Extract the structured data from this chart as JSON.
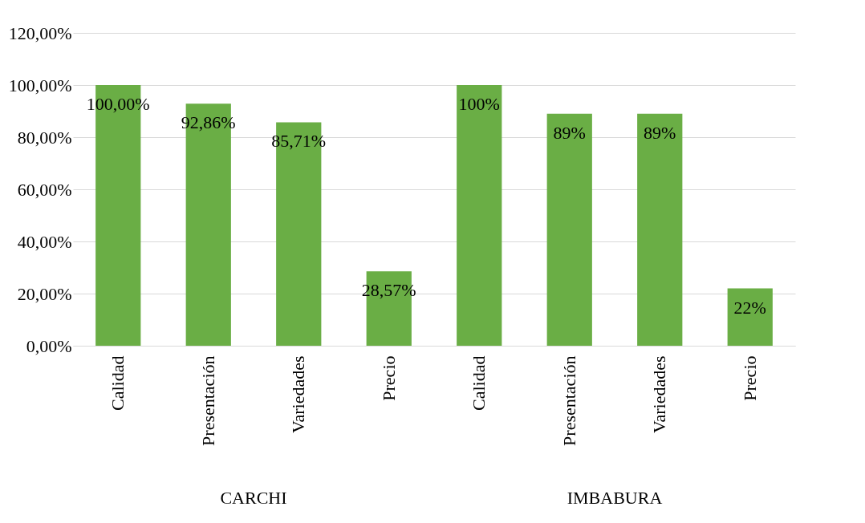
{
  "chart_data": {
    "type": "bar",
    "categories": [
      "Calidad",
      "Presentación",
      "Variedades",
      "Precio",
      "Calidad",
      "Presentación",
      "Variedades",
      "Precio"
    ],
    "values": [
      100,
      92.86,
      85.71,
      28.57,
      100,
      89,
      89,
      22
    ],
    "value_labels": [
      "100,00%",
      "92,86%",
      "85,71%",
      "28,57%",
      "100%",
      "89%",
      "89%",
      "22%"
    ],
    "color": "#6aae45",
    "ylim": [
      0,
      120
    ],
    "yticks": [
      {
        "value": 0,
        "label": "0,00%"
      },
      {
        "value": 20,
        "label": "20,00%"
      },
      {
        "value": 40,
        "label": "40,00%"
      },
      {
        "value": 60,
        "label": "60,00%"
      },
      {
        "value": 80,
        "label": "80,00%"
      },
      {
        "value": 100,
        "label": "100,00%"
      },
      {
        "value": 120,
        "label": "120,00%"
      }
    ],
    "annotations": [
      "CARCHI",
      "IMBABURA"
    ],
    "grid": "y"
  }
}
